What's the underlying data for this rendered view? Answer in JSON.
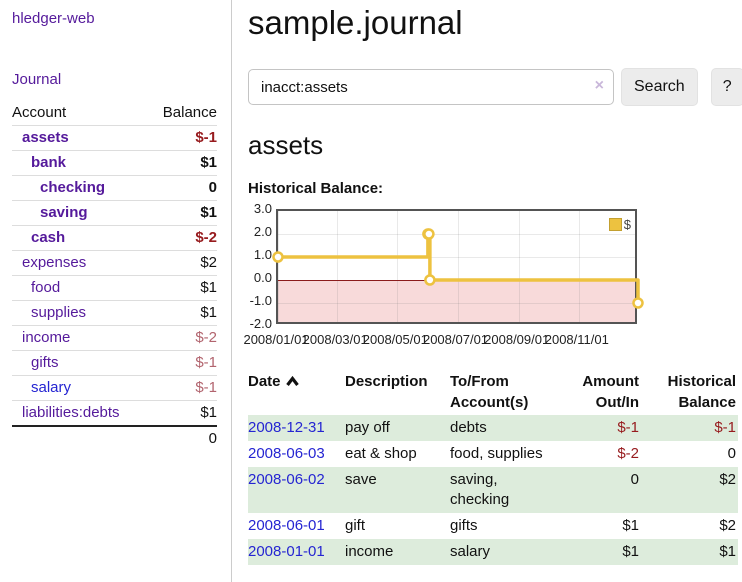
{
  "sidebar": {
    "app_title": "hledger-web",
    "journal_link": "Journal",
    "accounts_header": {
      "account": "Account",
      "balance": "Balance"
    },
    "accounts": [
      {
        "name": "assets",
        "balance": "$-1",
        "row_css": "lvl1 bold",
        "name_css": "purple",
        "balance_css": "neg-strong"
      },
      {
        "name": "bank",
        "balance": "$1",
        "row_css": "lvl2 bold",
        "name_css": "purple",
        "balance_css": ""
      },
      {
        "name": "checking",
        "balance": "0",
        "row_css": "lvl3 bold",
        "name_css": "purple",
        "balance_css": ""
      },
      {
        "name": "saving",
        "balance": "$1",
        "row_css": "lvl3 bold",
        "name_css": "purple",
        "balance_css": ""
      },
      {
        "name": "cash",
        "balance": "$-2",
        "row_css": "lvl2 bold",
        "name_css": "purple",
        "balance_css": "neg-strong"
      },
      {
        "name": "expenses",
        "balance": "$2",
        "row_css": "lvl1",
        "name_css": "purple",
        "balance_css": ""
      },
      {
        "name": "food",
        "balance": "$1",
        "row_css": "lvl2",
        "name_css": "purple",
        "balance_css": ""
      },
      {
        "name": "supplies",
        "balance": "$1",
        "row_css": "lvl2",
        "name_css": "purple",
        "balance_css": ""
      },
      {
        "name": "income",
        "balance": "$-2",
        "row_css": "lvl1",
        "name_css": "purple",
        "balance_css": "neg-soft"
      },
      {
        "name": "gifts",
        "balance": "$-1",
        "row_css": "lvl2",
        "name_css": "purple",
        "balance_css": "neg-soft"
      },
      {
        "name": "salary",
        "balance": "$-1",
        "row_css": "lvl2",
        "name_css": "blue",
        "balance_css": "neg-soft"
      },
      {
        "name": "liabilities:debts",
        "balance": "$1",
        "row_css": "lvl1",
        "name_css": "purple",
        "balance_css": ""
      }
    ],
    "total": "0"
  },
  "main": {
    "title": "sample.journal",
    "search": {
      "value": "inacct:assets",
      "clear_icon": "×",
      "button_label": "Search",
      "help_label": "?"
    },
    "account_heading": "assets",
    "table": {
      "headers": [
        {
          "line1": "Date",
          "line2": ""
        },
        {
          "line1": "Description",
          "line2": ""
        },
        {
          "line1": "To/From",
          "line2": "Account(s)"
        },
        {
          "line1": "Amount",
          "line2": "Out/In"
        },
        {
          "line1": "Historical",
          "line2": "Balance"
        }
      ],
      "sort_order": "ascending"
    },
    "transactions": [
      {
        "date": "2008-12-31",
        "description": "pay off",
        "accounts": "debts",
        "amount": "$-1",
        "histbal": "$-1",
        "row_css": "green",
        "amount_css": "neg",
        "histbal_css": "neg"
      },
      {
        "date": "2008-06-03",
        "description": "eat & shop",
        "accounts": "food, supplies",
        "amount": "$-2",
        "histbal": "0",
        "row_css": "",
        "amount_css": "neg",
        "histbal_css": ""
      },
      {
        "date": "2008-06-02",
        "description": "save",
        "accounts": "saving, checking",
        "amount": "0",
        "histbal": "$2",
        "row_css": "green",
        "amount_css": "",
        "histbal_css": ""
      },
      {
        "date": "2008-06-01",
        "description": "gift",
        "accounts": "gifts",
        "amount": "$1",
        "histbal": "$2",
        "row_css": "",
        "amount_css": "",
        "histbal_css": ""
      },
      {
        "date": "2008-01-01",
        "description": "income",
        "accounts": "salary",
        "amount": "$1",
        "histbal": "$1",
        "row_css": "green",
        "amount_css": "",
        "histbal_css": ""
      }
    ]
  },
  "chart_data": {
    "type": "line",
    "title": "Historical Balance:",
    "step": true,
    "series": [
      {
        "name": "$",
        "color": "#edc240",
        "points": [
          [
            "2008-01-01",
            1
          ],
          [
            "2008-06-01",
            2
          ],
          [
            "2008-06-02",
            2
          ],
          [
            "2008-06-03",
            0
          ],
          [
            "2008-12-31",
            -1
          ]
        ]
      }
    ],
    "xlim": [
      "2008-01-01",
      "2009-01-01"
    ],
    "ylim": [
      -2,
      3
    ],
    "yticks": [
      3.0,
      2.0,
      1.0,
      0.0,
      -1.0,
      -2.0
    ],
    "xticks": [
      "2008/01/01",
      "2008/03/01",
      "2008/05/01",
      "2008/07/01",
      "2008/09/01",
      "2008/11/01"
    ],
    "legend_position": "top-right",
    "grid": true,
    "negative_region_color": "#f8dada",
    "zero_line_color": "#8b1c1c"
  },
  "colors": {
    "link_purple": "#551a9b",
    "link_blue": "#2525d2",
    "negative_strong": "#971b1e",
    "negative_soft": "#b2646e",
    "row_green": "#ddecdc",
    "series_yellow": "#edc240"
  }
}
